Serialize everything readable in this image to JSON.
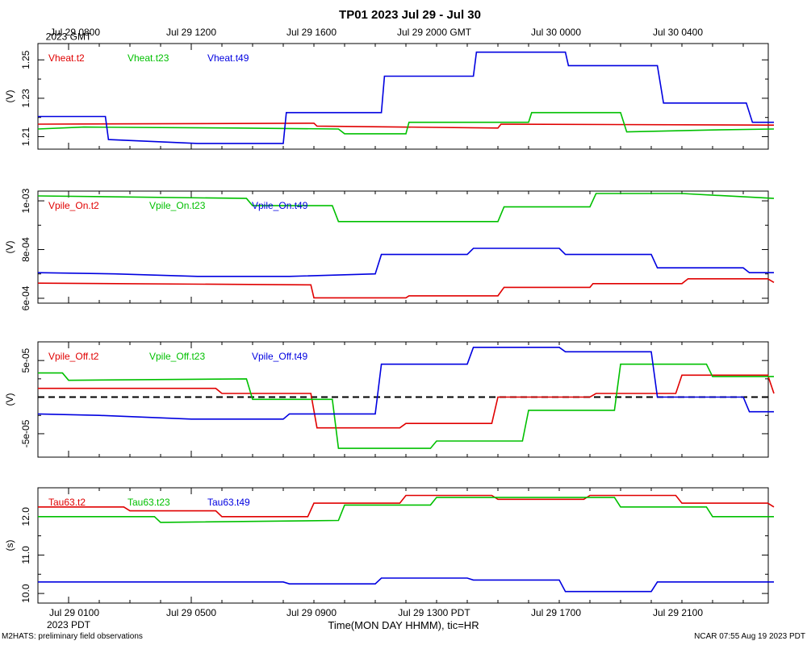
{
  "title": "TP01 2023 Jul 29 - Jul 30",
  "colors": {
    "red": "#e00000",
    "green": "#00c000",
    "blue": "#0000e0",
    "axis": "#000000"
  },
  "top_axis": {
    "labels": [
      "Jul 29 0800",
      "Jul 29 1200",
      "Jul 29 1600",
      "Jul 29 2000 GMT",
      "Jul 30 0000",
      "Jul 30 0400"
    ],
    "sublabel": "2023 GMT"
  },
  "bottom_axis": {
    "labels": [
      "Jul 29 0100",
      "Jul 29 0500",
      "Jul 29 0900",
      "Jul 29 1300 PDT",
      "Jul 29 1700",
      "Jul 29 2100"
    ],
    "sublabel": "2023 PDT",
    "title": "Time(MON DAY HHMM), tic=HR"
  },
  "footer": {
    "left": "M2HATS: preliminary field observations",
    "right": "NCAR 07:55 Aug 19 2023 PDT"
  },
  "chart_data": [
    {
      "type": "line",
      "ylabel": "(V)",
      "ylim": [
        1.2035,
        1.2585
      ],
      "yticks": [
        1.21,
        1.23,
        1.25
      ],
      "ytick_labels": [
        "1.21",
        "1.23",
        "1.25"
      ],
      "x_units": "hours since Jul 29 0000 PDT",
      "xlim": [
        0,
        24
      ],
      "zero_line": false,
      "series": [
        {
          "name": "Vheat.t2",
          "color": "red",
          "x": [
            0,
            9,
            9.1,
            15,
            15.1,
            24
          ],
          "y": [
            1.2165,
            1.217,
            1.2155,
            1.2145,
            1.2165,
            1.216
          ]
        },
        {
          "name": "Vheat.t23",
          "color": "green",
          "x": [
            0,
            1.5,
            6.5,
            9.8,
            10,
            12,
            12.1,
            16,
            16.1,
            19,
            19.2,
            22,
            24
          ],
          "y": [
            1.214,
            1.215,
            1.2145,
            1.214,
            1.2115,
            1.2115,
            1.2175,
            1.2175,
            1.2225,
            1.2225,
            1.2125,
            1.2135,
            1.214
          ]
        },
        {
          "name": "Vheat.t49",
          "color": "blue",
          "x": [
            0,
            2.2,
            2.3,
            5.2,
            8,
            8.1,
            11.2,
            11.3,
            14.2,
            14.3,
            17.2,
            17.3,
            20.2,
            20.4,
            23.1,
            23.3,
            24
          ],
          "y": [
            1.2205,
            1.2205,
            1.2085,
            1.2065,
            1.2065,
            1.2225,
            1.2225,
            1.2415,
            1.2415,
            1.254,
            1.254,
            1.247,
            1.247,
            1.2275,
            1.2275,
            1.2175,
            1.2175
          ]
        }
      ]
    },
    {
      "type": "line",
      "ylabel": "(V)",
      "ylim": [
        0.00058,
        0.00104
      ],
      "yticks": [
        0.0006,
        0.0008,
        0.001
      ],
      "ytick_labels": [
        "6e-04",
        "8e-04",
        "1e-03"
      ],
      "x_units": "hours since Jul 29 0000 PDT",
      "xlim": [
        0,
        24
      ],
      "zero_line": false,
      "series": [
        {
          "name": "Vpile_On.t2",
          "color": "red",
          "x": [
            0,
            8.9,
            9,
            12,
            12.1,
            15,
            15.2,
            18,
            18.1,
            21,
            21.2,
            23.8,
            24
          ],
          "y": [
            0.000662,
            0.000655,
            0.000602,
            0.000602,
            0.00061,
            0.00061,
            0.000645,
            0.000645,
            0.00066,
            0.00066,
            0.00068,
            0.00068,
            0.000665
          ]
        },
        {
          "name": "Vpile_On.t23",
          "color": "green",
          "x": [
            0,
            6.8,
            7,
            9.6,
            9.8,
            15,
            15.2,
            18,
            18.2,
            21,
            24
          ],
          "y": [
            0.00102,
            0.00101,
            0.00098,
            0.00098,
            0.000915,
            0.000915,
            0.000975,
            0.000975,
            0.00103,
            0.00103,
            0.00101
          ]
        },
        {
          "name": "Vpile_On.t49",
          "color": "blue",
          "x": [
            0,
            2.5,
            5.2,
            8.2,
            11,
            11.2,
            14,
            14.2,
            17,
            17.2,
            20,
            20.2,
            23,
            23.2,
            24
          ],
          "y": [
            0.000705,
            0.0007,
            0.00069,
            0.00069,
            0.0007,
            0.00078,
            0.00078,
            0.000805,
            0.000805,
            0.00078,
            0.00078,
            0.000725,
            0.000725,
            0.000705,
            0.000705
          ]
        }
      ]
    },
    {
      "type": "line",
      "ylabel": "(V)",
      "ylim": [
        -8.2e-05,
        7.55e-05
      ],
      "yticks": [
        -5e-05,
        0,
        5e-05
      ],
      "ytick_labels": [
        "-5e-05",
        "",
        "5e-05"
      ],
      "x_units": "hours since Jul 29 0000 PDT",
      "xlim": [
        0,
        24
      ],
      "zero_line": true,
      "series": [
        {
          "name": "Vpile_Off.t2",
          "color": "red",
          "x": [
            0,
            5.8,
            6,
            8.9,
            9.1,
            11.8,
            12,
            14.8,
            15,
            18,
            18.2,
            20.8,
            21,
            23.8,
            24
          ],
          "y": [
            1.2e-05,
            1.2e-05,
            5e-06,
            5e-06,
            -4.2e-05,
            -4.2e-05,
            -3.6e-05,
            -3.6e-05,
            -0.0,
            0.0,
            5e-06,
            5e-06,
            3e-05,
            3e-05,
            5e-06
          ]
        },
        {
          "name": "Vpile_Off.t23",
          "color": "green",
          "x": [
            0,
            0.8,
            1,
            6.8,
            7,
            9.6,
            9.8,
            12.8,
            13,
            15.8,
            16,
            18.8,
            19,
            21.8,
            22,
            24
          ],
          "y": [
            3.3e-05,
            3.3e-05,
            2.3e-05,
            2.5e-05,
            -3e-06,
            -3e-06,
            -7e-05,
            -7e-05,
            -6e-05,
            -6e-05,
            -1.8e-05,
            -1.8e-05,
            4.5e-05,
            4.5e-05,
            2.8e-05,
            2.8e-05
          ]
        },
        {
          "name": "Vpile_Off.t49",
          "color": "blue",
          "x": [
            0,
            2,
            5,
            8,
            8.2,
            11,
            11.2,
            14,
            14.2,
            17,
            17.2,
            20,
            20.2,
            23,
            23.2,
            24
          ],
          "y": [
            -2.3e-05,
            -2.5e-05,
            -3e-05,
            -3e-05,
            -2.3e-05,
            -2.3e-05,
            4.5e-05,
            4.5e-05,
            6.8e-05,
            6.8e-05,
            6.2e-05,
            6.2e-05,
            0.0,
            0.0,
            -2e-05,
            -2e-05
          ]
        }
      ]
    },
    {
      "type": "line",
      "ylabel": "(s)",
      "ylim": [
        9.75,
        12.75
      ],
      "yticks": [
        10.0,
        11.0,
        12.0
      ],
      "ytick_labels": [
        "10.0",
        "11.0",
        "12.0"
      ],
      "x_units": "hours since Jul 29 0000 PDT",
      "xlim": [
        0,
        24
      ],
      "zero_line": false,
      "series": [
        {
          "name": "Tau63.t2",
          "color": "red",
          "x": [
            0,
            2.8,
            3,
            5.8,
            6,
            8.8,
            9,
            11.8,
            12,
            14.8,
            15,
            17.8,
            18,
            20.8,
            21,
            23.8,
            24
          ],
          "y": [
            12.25,
            12.25,
            12.15,
            12.15,
            12.0,
            12.0,
            12.35,
            12.35,
            12.55,
            12.55,
            12.45,
            12.45,
            12.55,
            12.55,
            12.35,
            12.35,
            12.25
          ]
        },
        {
          "name": "Tau63.t23",
          "color": "green",
          "x": [
            0,
            3.8,
            4,
            9.8,
            10,
            12.8,
            13,
            18.8,
            19,
            21.8,
            22,
            24
          ],
          "y": [
            12.0,
            12.0,
            11.85,
            11.9,
            12.3,
            12.3,
            12.5,
            12.5,
            12.25,
            12.25,
            12.0,
            12.0
          ]
        },
        {
          "name": "Tau63.t49",
          "color": "blue",
          "x": [
            0,
            8,
            8.2,
            11,
            11.2,
            14,
            14.2,
            17,
            17.2,
            20,
            20.2,
            24
          ],
          "y": [
            10.3,
            10.3,
            10.25,
            10.25,
            10.4,
            10.4,
            10.35,
            10.35,
            10.05,
            10.05,
            10.3,
            10.3
          ]
        }
      ]
    }
  ]
}
